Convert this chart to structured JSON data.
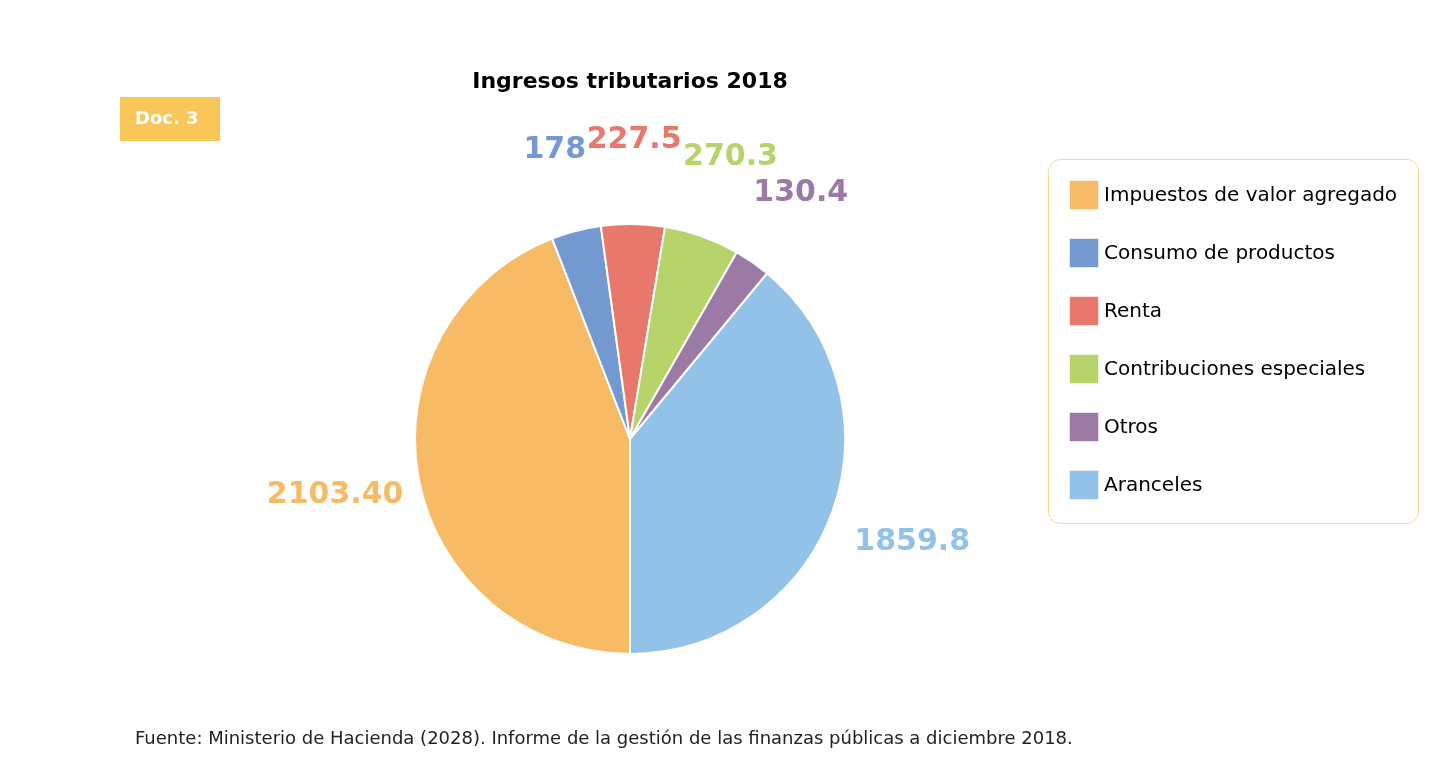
{
  "chart_data": {
    "type": "pie",
    "title": "Ingresos tributarios 2018",
    "categories": [
      "Impuestos de valor agregado",
      "Consumo de productos",
      "Renta",
      "Contribuciones especiales",
      "Otros",
      "Aranceles"
    ],
    "values": [
      2103.4,
      178,
      227.5,
      270.3,
      130.4,
      1859.8
    ],
    "value_labels": [
      "2103.40",
      "178",
      "227.5",
      "270.3",
      "130.4",
      "1859.8"
    ],
    "colors": [
      "#f7bb66",
      "#7399d0",
      "#e8786b",
      "#b6d46a",
      "#9b7aa6",
      "#93c2e8"
    ],
    "legend": "right",
    "annotations": [
      "Doc. 3",
      "Fuente: Ministerio de Hacienda (2028). Informe de la gestión de las finanzas públicas a diciembre 2018."
    ]
  }
}
